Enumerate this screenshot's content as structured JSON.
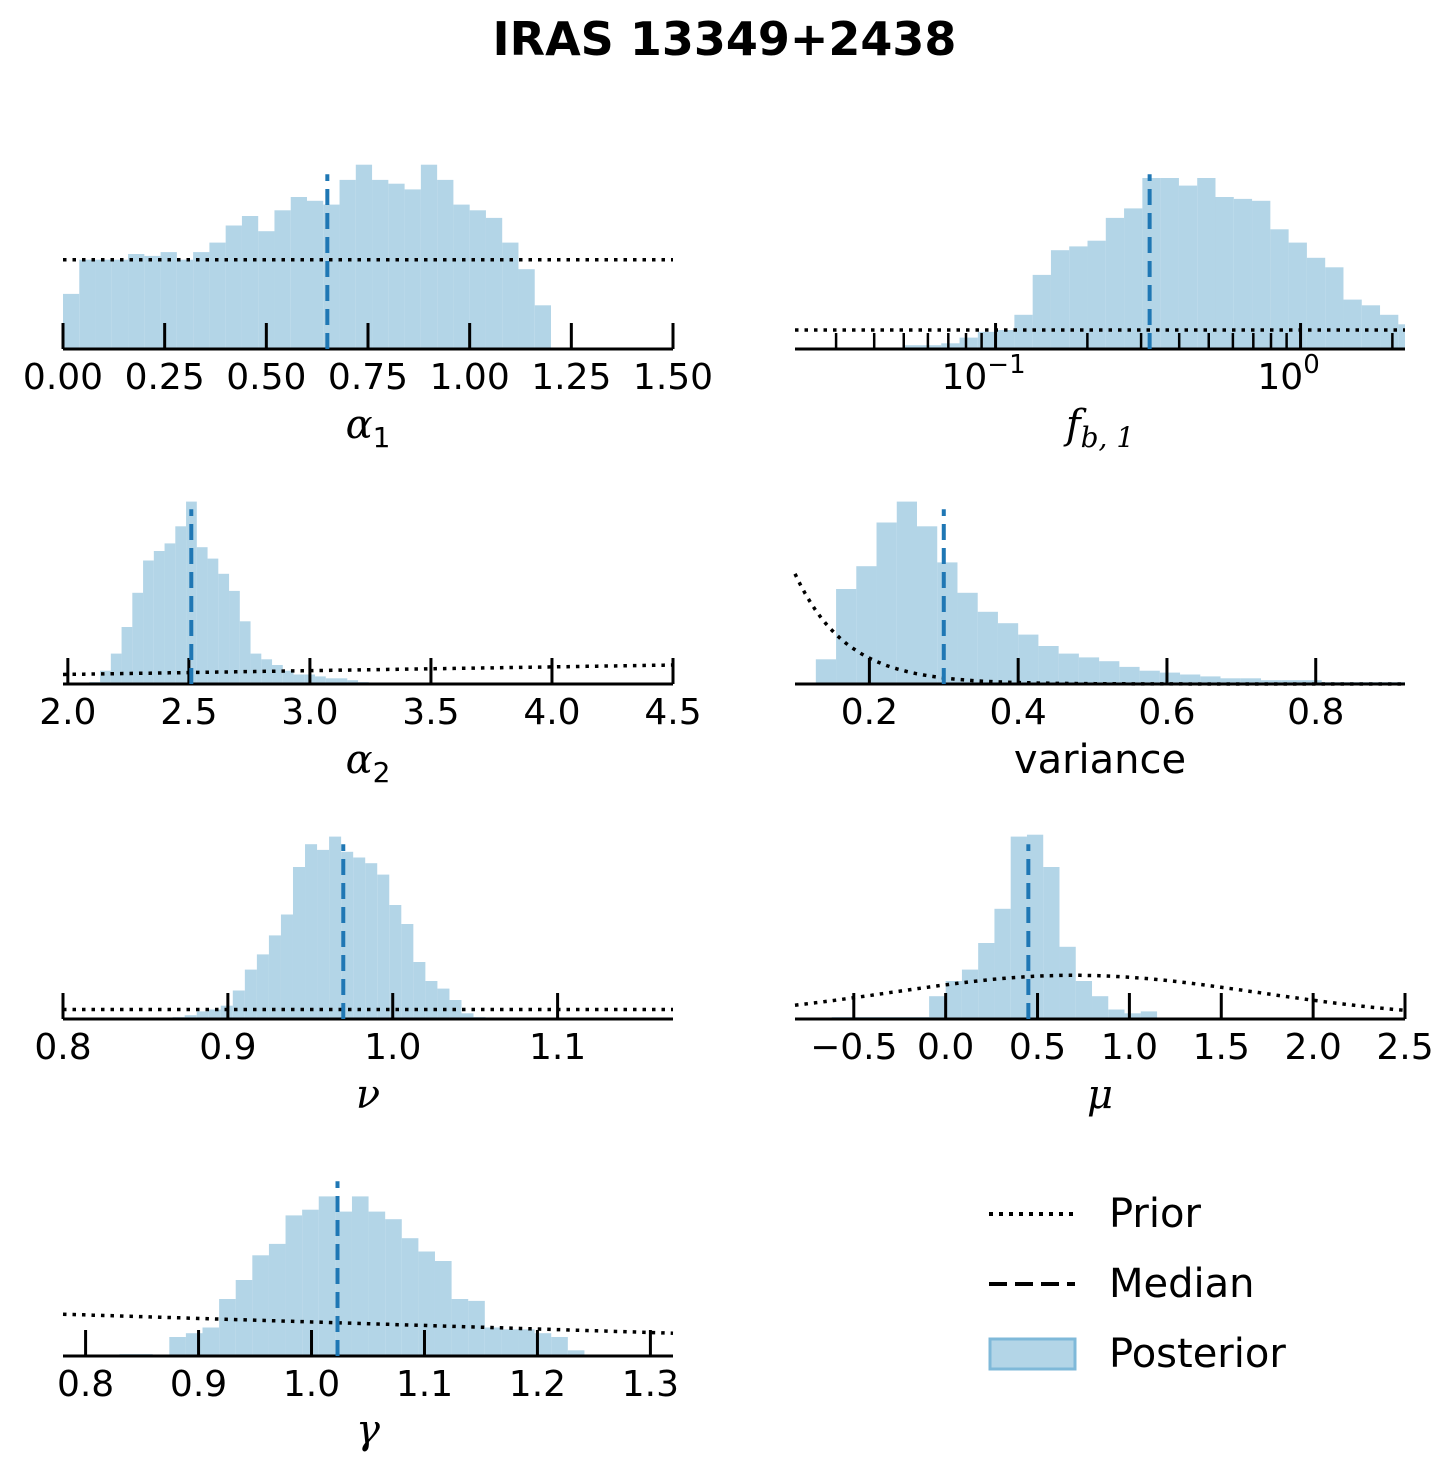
{
  "title": "IRAS 13349+2438",
  "colors": {
    "posterior": "#a6cee3",
    "median": "#1f77b4",
    "prior": "#000000"
  },
  "legend": {
    "placement": "bottom-right",
    "items": [
      {
        "label": "Prior",
        "style": "dotted"
      },
      {
        "label": "Median",
        "style": "dashed"
      },
      {
        "label": "Posterior",
        "style": "patch"
      }
    ]
  },
  "chart_data": [
    {
      "type": "histogram",
      "xlabel_key": "alpha1",
      "xscale": "linear",
      "xlim": [
        0.0,
        1.5
      ],
      "ticks": [
        0.0,
        0.25,
        0.5,
        0.75,
        1.0,
        1.25,
        1.5
      ],
      "tick_labels": [
        "0.00",
        "0.25",
        "0.50",
        "0.75",
        "1.00",
        "1.25",
        "1.50"
      ],
      "median": 0.65,
      "bins": {
        "start": 0.0,
        "step": 0.04,
        "heights": [
          0.29,
          0.47,
          0.47,
          0.47,
          0.5,
          0.49,
          0.51,
          0.47,
          0.51,
          0.56,
          0.65,
          0.7,
          0.62,
          0.73,
          0.8,
          0.78,
          0.76,
          0.89,
          0.97,
          0.89,
          0.87,
          0.84,
          0.97,
          0.89,
          0.76,
          0.73,
          0.69,
          0.56,
          0.42,
          0.23
        ]
      },
      "prior": {
        "kind": "flat",
        "level": 0.47
      }
    },
    {
      "type": "histogram",
      "xlabel_key": "fb1",
      "xscale": "log",
      "xlim": [
        0.022,
        2.2
      ],
      "ticks": [
        0.1,
        1.0
      ],
      "tick_labels": [
        "10",
        "10"
      ],
      "tick_exponents": [
        "−1",
        "0"
      ],
      "median": 0.32,
      "bins": {
        "start": 0.022,
        "ratio": 1.148,
        "heights": [
          0.0,
          0.0,
          0.0,
          0.0,
          0.0,
          0.0,
          0.02,
          0.02,
          0.03,
          0.06,
          0.09,
          0.1,
          0.18,
          0.39,
          0.52,
          0.54,
          0.57,
          0.69,
          0.74,
          0.9,
          0.9,
          0.86,
          0.9,
          0.8,
          0.79,
          0.78,
          0.63,
          0.56,
          0.48,
          0.43,
          0.26,
          0.23,
          0.18,
          0.13
        ]
      },
      "prior": {
        "kind": "flat",
        "level": 0.1
      }
    },
    {
      "type": "histogram",
      "xlabel_key": "alpha2",
      "xscale": "linear",
      "xlim": [
        1.98,
        4.5
      ],
      "ticks": [
        2.0,
        2.5,
        3.0,
        3.5,
        4.0,
        4.5
      ],
      "tick_labels": [
        "2.0",
        "2.5",
        "3.0",
        "3.5",
        "4.0",
        "4.5"
      ],
      "median": 2.51,
      "bins": {
        "start": 2.0,
        "step": 0.0444,
        "heights": [
          0.0,
          0.0,
          0.01,
          0.07,
          0.16,
          0.3,
          0.48,
          0.65,
          0.7,
          0.74,
          0.83,
          0.96,
          0.72,
          0.66,
          0.58,
          0.49,
          0.33,
          0.16,
          0.13,
          0.1,
          0.07,
          0.05,
          0.05,
          0.04,
          0.03,
          0.03,
          0.02,
          0.01,
          0.0,
          0.0
        ]
      },
      "prior": {
        "kind": "slope",
        "left": 0.05,
        "right": 0.1
      }
    },
    {
      "type": "histogram",
      "xlabel_key": "variance",
      "xscale": "linear",
      "xlim": [
        0.1,
        0.92
      ],
      "ticks": [
        0.2,
        0.4,
        0.6,
        0.8
      ],
      "tick_labels": [
        "0.2",
        "0.4",
        "0.6",
        "0.8"
      ],
      "median": 0.3,
      "bins": {
        "start": 0.128,
        "step": 0.0272,
        "heights": [
          0.13,
          0.5,
          0.62,
          0.85,
          0.96,
          0.83,
          0.64,
          0.48,
          0.38,
          0.32,
          0.26,
          0.2,
          0.16,
          0.14,
          0.12,
          0.09,
          0.07,
          0.06,
          0.05,
          0.04,
          0.03,
          0.03,
          0.02,
          0.02,
          0.02,
          0.01,
          0.01,
          0.01,
          0.01,
          0.01
        ]
      },
      "prior": {
        "kind": "exp",
        "x0": 0.1,
        "y0": 0.58,
        "decay": 0.069
      }
    },
    {
      "type": "histogram",
      "xlabel_key": "nu",
      "xscale": "linear",
      "xlim": [
        0.8,
        1.17
      ],
      "ticks": [
        0.8,
        0.9,
        1.0,
        1.1
      ],
      "tick_labels": [
        "0.8",
        "0.9",
        "1.0",
        "1.1"
      ],
      "median": 0.97,
      "bins": {
        "start": 0.83,
        "step": 0.0073,
        "heights": [
          0.0,
          0.0,
          0.0,
          0.0,
          0.0,
          0.01,
          0.02,
          0.04,
          0.05,
          0.07,
          0.15,
          0.26,
          0.34,
          0.44,
          0.55,
          0.8,
          0.92,
          0.89,
          0.96,
          0.88,
          0.85,
          0.82,
          0.76,
          0.6,
          0.5,
          0.3,
          0.2,
          0.16,
          0.1,
          0.03,
          0.01,
          0.0
        ]
      },
      "prior": {
        "kind": "flat",
        "level": 0.05
      }
    },
    {
      "type": "histogram",
      "xlabel_key": "mu",
      "xscale": "linear",
      "xlim": [
        -0.82,
        2.5
      ],
      "ticks": [
        -0.5,
        0.0,
        0.5,
        1.0,
        1.5,
        2.0,
        2.5
      ],
      "tick_labels": [
        "−0.5",
        "0.0",
        "0.5",
        "1.0",
        "1.5",
        "2.0",
        "2.5"
      ],
      "median": 0.45,
      "bins": {
        "start": 0.0,
        "step": 0.0885,
        "heights": [
          0.2,
          0.26,
          0.4,
          0.58,
          0.96,
          0.97,
          0.8,
          0.38,
          0.2,
          0.12,
          0.05,
          0.03,
          0.04,
          0.0
        ]
      },
      "extra_bins": [
        {
          "x0": -0.62,
          "x1": -0.09,
          "h": 0.01
        },
        {
          "x0": -0.09,
          "x1": 0.0,
          "h": 0.12
        }
      ],
      "prior": {
        "kind": "gauss",
        "mu": 0.7,
        "sigma": 2.0,
        "peak": 0.23
      }
    },
    {
      "type": "histogram",
      "xlabel_key": "gamma",
      "xscale": "linear",
      "xlim": [
        0.78,
        1.32
      ],
      "ticks": [
        0.8,
        0.9,
        1.0,
        1.1,
        1.2,
        1.3
      ],
      "tick_labels": [
        "0.8",
        "0.9",
        "1.0",
        "1.1",
        "1.2",
        "1.3"
      ],
      "median": 1.023,
      "bins": {
        "start": 0.83,
        "step": 0.0147,
        "heights": [
          0.01,
          0.01,
          0.0,
          0.1,
          0.12,
          0.15,
          0.3,
          0.4,
          0.53,
          0.59,
          0.74,
          0.77,
          0.84,
          0.76,
          0.84,
          0.76,
          0.72,
          0.62,
          0.55,
          0.5,
          0.3,
          0.29,
          0.15,
          0.14,
          0.14,
          0.12,
          0.1,
          0.03
        ]
      },
      "prior": {
        "kind": "slope",
        "left": 0.22,
        "right": 0.12
      }
    }
  ],
  "xlabels": {
    "alpha1": {
      "symbol": "α",
      "sub": "1"
    },
    "fb1": {
      "symbol": "f",
      "sub": "b, 1"
    },
    "alpha2": {
      "symbol": "α",
      "sub": "2"
    },
    "variance": {
      "text": "variance"
    },
    "nu": {
      "symbol": "ν",
      "sub": ""
    },
    "mu": {
      "symbol": "μ",
      "sub": ""
    },
    "gamma": {
      "symbol": "γ",
      "sub": ""
    }
  }
}
